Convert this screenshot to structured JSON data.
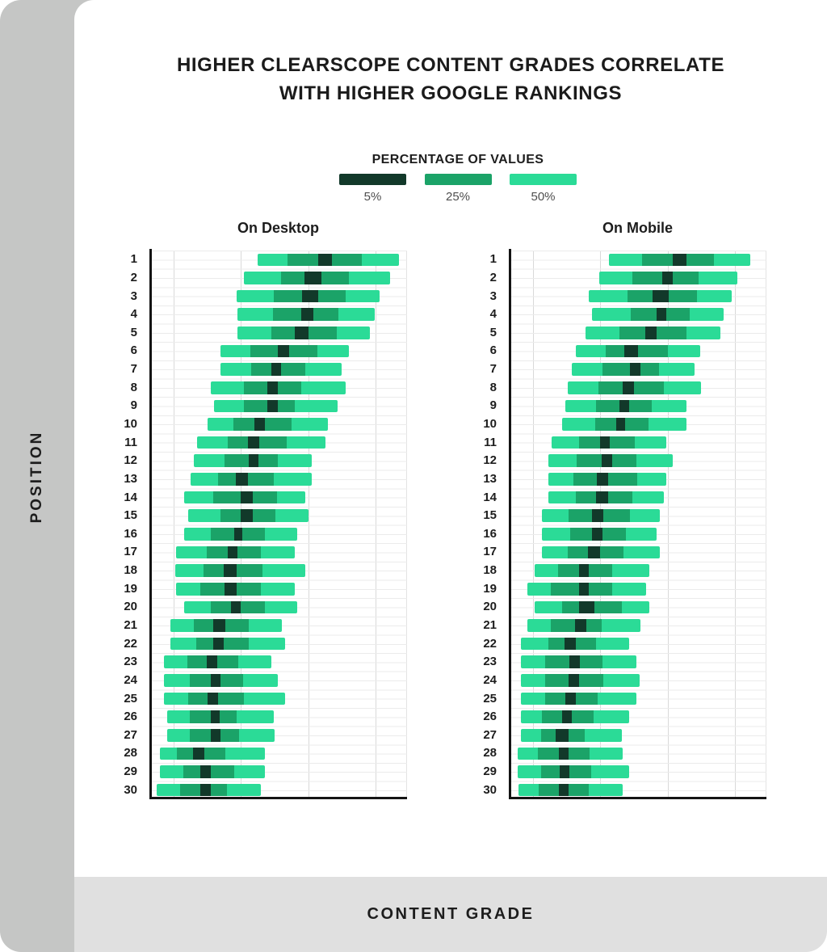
{
  "header": {
    "title_line1": "HIGHER CLEARSCOPE CONTENT GRADES CORRELATE",
    "title_line2": "WITH HIGHER GOOGLE RANKINGS"
  },
  "axes": {
    "y_title": "POSITION",
    "x_title": "CONTENT GRADE"
  },
  "legend": {
    "title": "PERCENTAGE OF VALUES",
    "items": [
      {
        "label": "5%",
        "color": "#12392a"
      },
      {
        "label": "25%",
        "color": "#1ba368"
      },
      {
        "label": "50%",
        "color": "#2bdb97"
      }
    ]
  },
  "chart_data": {
    "type": "bar",
    "subtype": "horizontal nested percentile-range bars (central 5% / 25% / 50% of values per Google position)",
    "title": "HIGHER CLEARSCOPE CONTENT GRADES CORRELATE WITH HIGHER GOOGLE RANKINGS",
    "xlabel": "CONTENT GRADE",
    "ylabel": "POSITION",
    "x_axis_tick_labels": [],
    "x_unit": "percent of plot width (content-grade axis has no visible tick labels)",
    "grid": "light horizontal rules every half row; light vertical rules at 9.4%, 35.4%, 61.8%, 87.8% of plot width",
    "band_meaning": {
      "dark": "5% of values",
      "mid": "25% of values",
      "light": "50% of values"
    },
    "bounds_order": [
      "light_left",
      "mid_left",
      "dark_left",
      "dark_right",
      "mid_right",
      "light_right"
    ],
    "colors": {
      "pct5": "#12392a",
      "pct25": "#1ba368",
      "pct50": "#2bdb97"
    },
    "positions": [
      1,
      2,
      3,
      4,
      5,
      6,
      7,
      8,
      9,
      10,
      11,
      12,
      13,
      14,
      15,
      16,
      17,
      18,
      19,
      20,
      21,
      22,
      23,
      24,
      25,
      26,
      27,
      28,
      29,
      30
    ],
    "series": [
      {
        "name": "On Desktop",
        "rows": [
          [
            42.0,
            53.6,
            65.5,
            70.8,
            82.4,
            96.9
          ],
          [
            36.7,
            51.1,
            60.2,
            66.8,
            77.4,
            93.4
          ],
          [
            33.9,
            48.3,
            59.2,
            65.5,
            76.2,
            89.3
          ],
          [
            34.2,
            48.0,
            58.9,
            63.6,
            73.4,
            87.5
          ],
          [
            34.2,
            47.3,
            56.4,
            61.8,
            72.7,
            85.6
          ],
          [
            27.6,
            39.2,
            49.8,
            54.2,
            65.2,
            77.4
          ],
          [
            27.6,
            39.5,
            47.3,
            51.1,
            60.5,
            74.6
          ],
          [
            23.8,
            36.7,
            45.8,
            49.8,
            58.9,
            76.2
          ],
          [
            25.1,
            36.7,
            45.8,
            49.8,
            56.4,
            73.0
          ],
          [
            22.6,
            32.6,
            40.8,
            44.8,
            55.2,
            69.3
          ],
          [
            18.5,
            30.4,
            38.2,
            42.6,
            53.3,
            68.3
          ],
          [
            17.2,
            29.2,
            38.6,
            42.3,
            49.8,
            63.0
          ],
          [
            16.0,
            26.6,
            33.5,
            38.2,
            48.3,
            63.0
          ],
          [
            13.5,
            24.8,
            35.4,
            40.1,
            49.5,
            60.5
          ],
          [
            15.0,
            27.6,
            35.4,
            40.1,
            48.9,
            61.8
          ],
          [
            13.5,
            23.8,
            32.9,
            36.1,
            44.8,
            57.4
          ],
          [
            10.3,
            22.3,
            30.4,
            34.2,
            43.3,
            56.4
          ],
          [
            10.0,
            21.0,
            28.8,
            33.9,
            43.9,
            60.5
          ],
          [
            10.3,
            19.7,
            29.2,
            33.9,
            43.3,
            56.4
          ],
          [
            13.5,
            23.8,
            31.7,
            35.4,
            44.8,
            57.4
          ],
          [
            8.2,
            17.2,
            24.8,
            29.5,
            38.6,
            51.4
          ],
          [
            8.2,
            18.2,
            24.8,
            28.8,
            38.6,
            52.7
          ],
          [
            5.6,
            14.7,
            22.3,
            26.3,
            34.5,
            47.3
          ],
          [
            5.6,
            15.7,
            23.8,
            27.6,
            36.4,
            49.8
          ],
          [
            5.6,
            15.0,
            22.6,
            26.6,
            36.7,
            52.7
          ],
          [
            6.9,
            15.7,
            23.8,
            27.3,
            33.9,
            48.3
          ],
          [
            6.9,
            15.7,
            23.8,
            27.6,
            34.8,
            48.6
          ],
          [
            4.1,
            10.7,
            16.9,
            21.3,
            29.5,
            44.8
          ],
          [
            4.1,
            13.2,
            19.7,
            23.8,
            32.9,
            44.8
          ],
          [
            2.8,
            11.9,
            19.7,
            23.8,
            30.1,
            43.3
          ]
        ]
      },
      {
        "name": "On Mobile",
        "rows": [
          [
            38.9,
            51.7,
            63.6,
            69.0,
            79.6,
            93.7
          ],
          [
            35.1,
            48.0,
            59.6,
            63.6,
            73.7,
            88.7
          ],
          [
            31.0,
            46.1,
            55.8,
            62.1,
            73.0,
            86.5
          ],
          [
            32.3,
            47.3,
            57.4,
            61.1,
            70.2,
            83.4
          ],
          [
            29.8,
            42.9,
            53.0,
            57.4,
            69.0,
            82.1
          ],
          [
            26.0,
            37.6,
            44.8,
            50.2,
            61.8,
            74.3
          ],
          [
            24.5,
            36.4,
            47.0,
            51.1,
            58.3,
            72.1
          ],
          [
            22.9,
            34.8,
            44.2,
            48.6,
            60.2,
            74.6
          ],
          [
            21.9,
            33.9,
            42.9,
            46.7,
            55.5,
            69.0
          ],
          [
            20.7,
            33.5,
            41.7,
            45.1,
            54.2,
            69.0
          ],
          [
            16.6,
            27.3,
            35.4,
            39.2,
            48.9,
            61.1
          ],
          [
            15.4,
            26.3,
            36.1,
            40.1,
            49.5,
            63.6
          ],
          [
            15.4,
            25.1,
            34.2,
            38.6,
            49.8,
            61.1
          ],
          [
            15.4,
            26.0,
            33.9,
            38.6,
            48.0,
            60.2
          ],
          [
            12.9,
            23.2,
            32.3,
            36.7,
            47.0,
            58.6
          ],
          [
            12.9,
            23.8,
            32.3,
            36.4,
            45.5,
            57.4
          ],
          [
            12.9,
            22.9,
            30.7,
            35.4,
            44.5,
            58.6
          ],
          [
            10.0,
            19.1,
            27.3,
            31.0,
            40.1,
            54.5
          ],
          [
            7.2,
            16.3,
            27.3,
            31.0,
            40.1,
            53.3
          ],
          [
            10.0,
            20.7,
            27.3,
            33.2,
            43.9,
            54.5
          ],
          [
            7.2,
            16.3,
            25.7,
            30.1,
            36.1,
            51.1
          ],
          [
            4.7,
            15.4,
            21.6,
            26.0,
            33.9,
            46.7
          ],
          [
            4.7,
            14.1,
            23.5,
            27.6,
            36.4,
            49.5
          ],
          [
            4.7,
            14.1,
            23.2,
            27.3,
            36.7,
            50.8
          ],
          [
            4.7,
            14.1,
            21.9,
            26.0,
            34.5,
            49.5
          ],
          [
            4.7,
            12.9,
            20.7,
            24.5,
            32.9,
            46.7
          ],
          [
            4.7,
            12.5,
            18.2,
            23.2,
            29.5,
            43.9
          ],
          [
            3.4,
            11.3,
            19.4,
            23.2,
            31.3,
            44.2
          ],
          [
            3.4,
            12.5,
            19.7,
            23.5,
            32.0,
            46.7
          ],
          [
            3.8,
            11.6,
            19.4,
            23.2,
            31.0,
            44.2
          ]
        ]
      }
    ]
  }
}
